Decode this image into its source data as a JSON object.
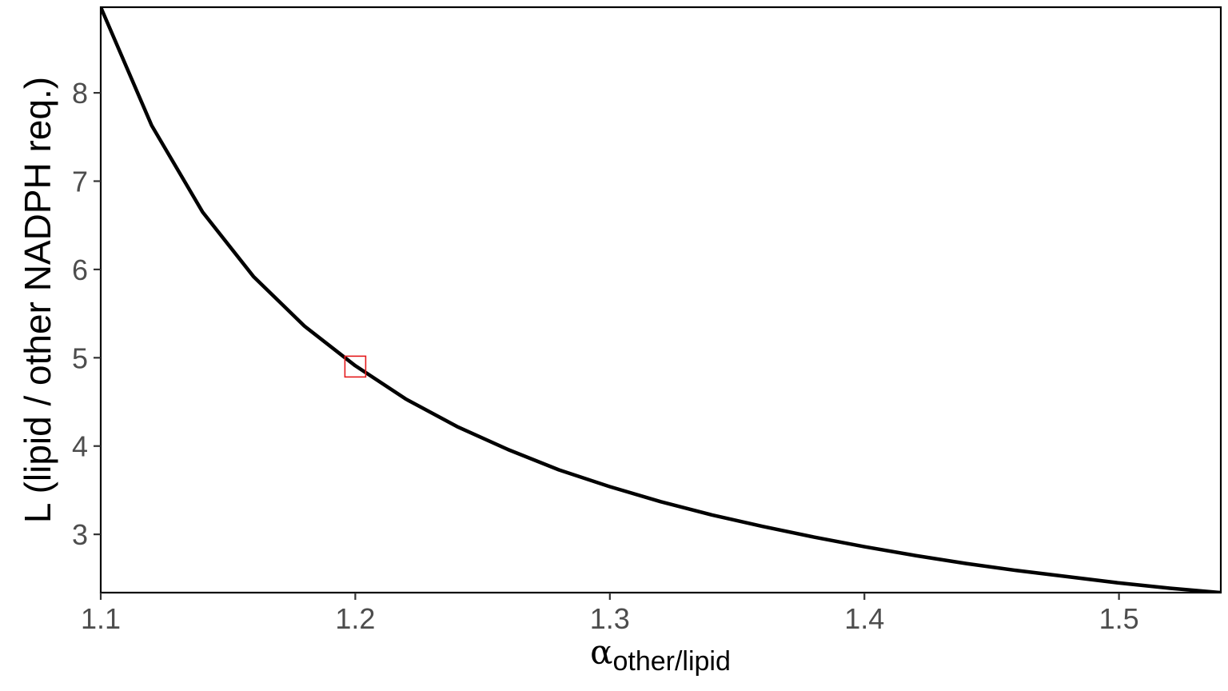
{
  "chart_data": {
    "type": "line",
    "xlabel": {
      "main": "α",
      "subscript": "other/lipid"
    },
    "ylabel": "L (lipid / other NADPH req.)",
    "xlim": [
      1.1,
      1.54
    ],
    "ylim": [
      2.34,
      8.97
    ],
    "x_ticks": [
      1.1,
      1.2,
      1.3,
      1.4,
      1.5
    ],
    "x_tick_labels": [
      "1.1",
      "1.2",
      "1.3",
      "1.4",
      "1.5"
    ],
    "y_ticks": [
      3,
      4,
      5,
      6,
      7,
      8
    ],
    "y_tick_labels": [
      "3",
      "4",
      "5",
      "6",
      "7",
      "8"
    ],
    "grid": false,
    "series": [
      {
        "color": "#000000",
        "x": [
          1.1,
          1.12,
          1.14,
          1.16,
          1.18,
          1.2,
          1.22,
          1.24,
          1.26,
          1.28,
          1.3,
          1.32,
          1.34,
          1.36,
          1.38,
          1.4,
          1.42,
          1.44,
          1.46,
          1.48,
          1.5,
          1.52,
          1.54
        ],
        "y": [
          8.97,
          7.63,
          6.65,
          5.92,
          5.36,
          4.91,
          4.53,
          4.22,
          3.96,
          3.73,
          3.54,
          3.37,
          3.22,
          3.09,
          2.97,
          2.86,
          2.76,
          2.67,
          2.59,
          2.52,
          2.45,
          2.39,
          2.34
        ]
      }
    ],
    "highlight_point": {
      "x": 1.2,
      "y": 4.9,
      "color": "#e41a1c"
    }
  }
}
